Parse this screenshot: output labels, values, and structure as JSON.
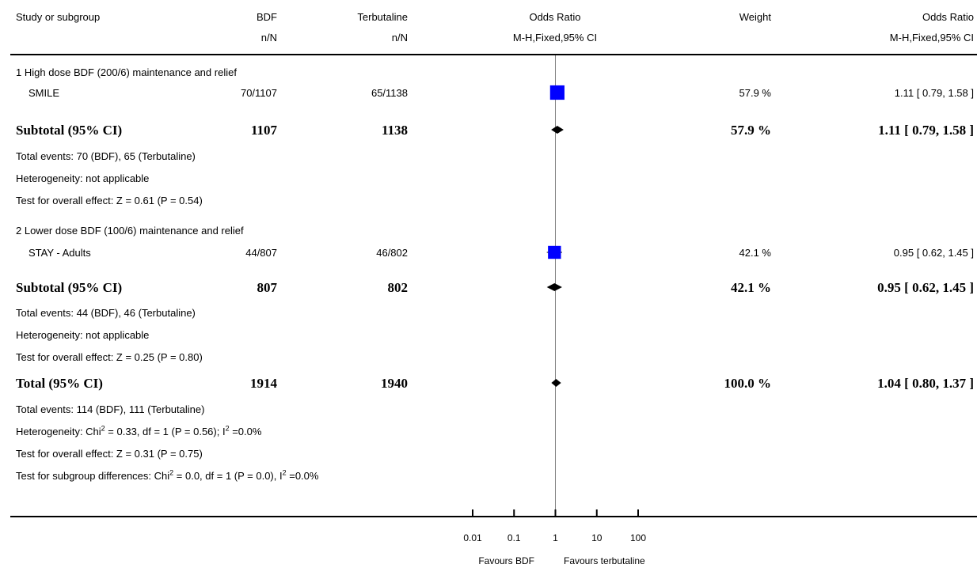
{
  "header": {
    "study": "Study or subgroup",
    "group1": "BDF",
    "group1_sub": "n/N",
    "group2": "Terbutaline",
    "group2_sub": "n/N",
    "or_title": "Odds Ratio",
    "or_sub": "M-H,Fixed,95% CI",
    "weight": "Weight",
    "or2_title": "Odds Ratio",
    "or2_sub": "M-H,Fixed,95% CI"
  },
  "subgroup1": {
    "title": "1 High dose BDF (200/6) maintenance and relief",
    "study": {
      "name": "SMILE",
      "g1": "70/1107",
      "g2": "65/1138",
      "weight": "57.9 %",
      "ci": "1.11 [ 0.79, 1.58 ]"
    },
    "subtotal": {
      "label": "Subtotal (95% CI)",
      "g1": "1107",
      "g2": "1138",
      "weight": "57.9 %",
      "ci": "1.11 [ 0.79, 1.58 ]"
    },
    "events": "Total events: 70 (BDF), 65 (Terbutaline)",
    "heterogeneity": "Heterogeneity: not applicable",
    "overall": "Test for overall effect: Z = 0.61  (P = 0.54)"
  },
  "subgroup2": {
    "title": "2 Lower dose BDF (100/6) maintenance and relief",
    "study": {
      "name": "STAY - Adults",
      "g1": "44/807",
      "g2": "46/802",
      "weight": "42.1 %",
      "ci": "0.95 [ 0.62, 1.45 ]"
    },
    "subtotal": {
      "label": "Subtotal (95% CI)",
      "g1": "807",
      "g2": "802",
      "weight": "42.1 %",
      "ci": "0.95 [ 0.62, 1.45 ]"
    },
    "events": "Total events: 44 (BDF), 46 (Terbutaline)",
    "heterogeneity": "Heterogeneity: not applicable",
    "overall": "Test for overall effect: Z = 0.25  (P = 0.80)"
  },
  "total": {
    "label": "Total (95% CI)",
    "g1": "1914",
    "g2": "1940",
    "weight": "100.0 %",
    "ci": "1.04 [ 0.80, 1.37 ]",
    "events": "Total events: 114 (BDF), 111 (Terbutaline)",
    "het_pre": "Heterogeneity: Chi",
    "het_sup1": "2",
    "het_mid": " = 0.33, df = 1 (P = 0.56); I",
    "het_sup2": "2",
    "het_post": " =0.0%",
    "overall": "Test for overall effect: Z = 0.31  (P = 0.75)",
    "sub_pre": "Test for subgroup differences: Chi",
    "sub_sup1": "2",
    "sub_mid": " = 0.0, df = 1 (P = 0.0), I",
    "sub_sup2": "2",
    "sub_post": " =0.0%"
  },
  "axis": {
    "favours_left": "Favours BDF",
    "favours_right": "Favours terbutaline"
  },
  "chart_data": {
    "type": "forest",
    "scale": "log",
    "xlim": [
      0.01,
      100
    ],
    "ticks": [
      {
        "value": 0.01,
        "label": "0.01"
      },
      {
        "value": 0.1,
        "label": "0.1"
      },
      {
        "value": 1,
        "label": "1"
      },
      {
        "value": 10,
        "label": "10"
      },
      {
        "value": 100,
        "label": "100"
      }
    ],
    "null_line": 1,
    "studies": [
      {
        "name": "SMILE",
        "or": 1.11,
        "lower": 0.79,
        "upper": 1.58,
        "weight": 57.9
      },
      {
        "name": "STAY - Adults",
        "or": 0.95,
        "lower": 0.62,
        "upper": 1.45,
        "weight": 42.1
      }
    ],
    "pooled": [
      {
        "name": "Subtotal 1",
        "or": 1.11,
        "lower": 0.79,
        "upper": 1.58
      },
      {
        "name": "Subtotal 2",
        "or": 0.95,
        "lower": 0.62,
        "upper": 1.45
      },
      {
        "name": "Total",
        "or": 1.04,
        "lower": 0.8,
        "upper": 1.37
      }
    ],
    "colors": {
      "study_box": "#0000ff",
      "diamond": "#000000"
    }
  }
}
